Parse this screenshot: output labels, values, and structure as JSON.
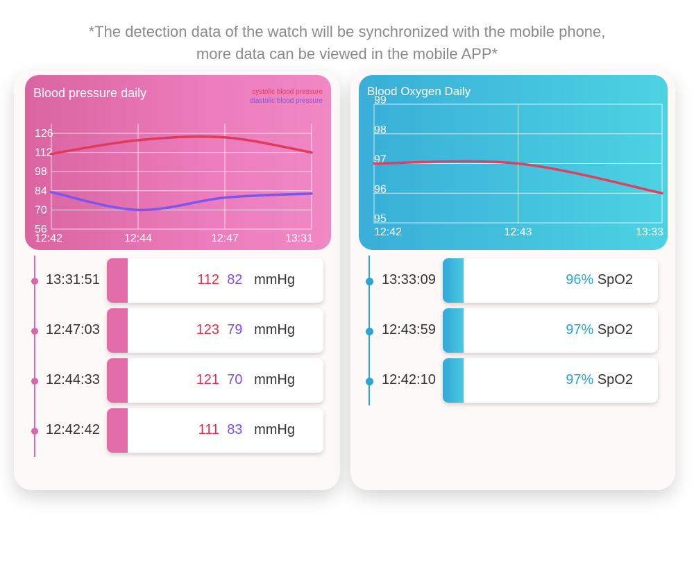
{
  "caption": {
    "line1": "*The detection data of the watch will be synchronized with the mobile phone,",
    "line2": "more data can be viewed in the mobile APP*"
  },
  "bp": {
    "title": "Blood pressure daily",
    "legend": {
      "systolic": "systolic blood pressure",
      "diastolic": "diastolic blood pressure"
    },
    "colors": {
      "systolic": "#e03a5a",
      "diastolic": "#7b55f0",
      "accent": "#e26ca8"
    },
    "unit": "mmHg",
    "records": [
      {
        "time": "13:31:51",
        "sys": "112",
        "dia": "82"
      },
      {
        "time": "12:47:03",
        "sys": "123",
        "dia": "79"
      },
      {
        "time": "12:44:33",
        "sys": "121",
        "dia": "70"
      },
      {
        "time": "12:42:42",
        "sys": "111",
        "dia": "83"
      }
    ]
  },
  "spo2": {
    "title": "Blood Oxygen Daily",
    "colors": {
      "line": "#e0405e",
      "accent": "#2aa6d6"
    },
    "unit": "SpO2",
    "records": [
      {
        "time": "13:33:09",
        "value": "96%"
      },
      {
        "time": "12:43:59",
        "value": "97%"
      },
      {
        "time": "12:42:10",
        "value": "97%"
      }
    ]
  },
  "chart_data": [
    {
      "type": "line",
      "title": "Blood pressure daily",
      "x": [
        "12:42",
        "12:44",
        "12:47",
        "13:31"
      ],
      "yticks": [
        56,
        70,
        84,
        98,
        112,
        126
      ],
      "ylim": [
        56,
        126
      ],
      "grid": true,
      "legend": "top-right",
      "series": [
        {
          "name": "systolic blood pressure",
          "values": [
            111,
            121,
            123,
            112
          ]
        },
        {
          "name": "diastolic blood pressure",
          "values": [
            83,
            70,
            79,
            82
          ]
        }
      ]
    },
    {
      "type": "line",
      "title": "Blood Oxygen Daily",
      "x": [
        "12:42",
        "12:43",
        "13:33"
      ],
      "yticks": [
        95,
        96,
        97,
        98,
        99
      ],
      "ylim": [
        95,
        99
      ],
      "grid": true,
      "series": [
        {
          "values": [
            97,
            97,
            96
          ]
        }
      ]
    }
  ]
}
